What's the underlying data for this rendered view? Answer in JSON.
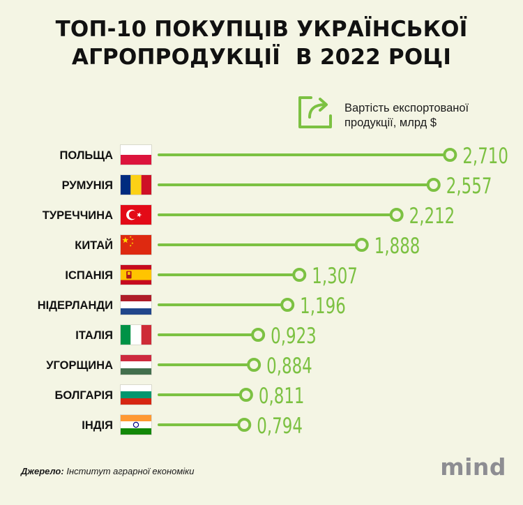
{
  "title": {
    "line1": "ТОП-10 ПОКУПЦІВ УКРАЇНСЬКОЇ",
    "line2": "АГРОПРОДУКЦІЇ  В 2022 РОЦІ"
  },
  "legend": {
    "icon": "export-share-icon",
    "line1": "Вартість експортованої",
    "line2": "продукції, млрд $"
  },
  "colors": {
    "accent": "#7cc142",
    "background": "#f4f5e4",
    "text": "#111111"
  },
  "chart_data": {
    "type": "bar",
    "title": "ТОП-10 ПОКУПЦІВ УКРАЇНСЬКОЇ АГРОПРОДУКЦІЇ  В 2022 РОЦІ",
    "xlabel": "",
    "ylabel": "",
    "unit": "млрд $",
    "xlim": [
      0,
      2.9
    ],
    "grid": false,
    "categories": [
      "ПОЛЬЩА",
      "РУМУНІЯ",
      "ТУРЕЧЧИНА",
      "КИТАЙ",
      "ІСПАНІЯ",
      "НІДЕРЛАНДИ",
      "ІТАЛІЯ",
      "УГОРЩИНА",
      "БОЛГАРІЯ",
      "ІНДІЯ"
    ],
    "flags": [
      "poland-flag",
      "romania-flag",
      "turkey-flag",
      "china-flag",
      "spain-flag",
      "netherlands-flag",
      "italy-flag",
      "hungary-flag",
      "bulgaria-flag",
      "india-flag"
    ],
    "values": [
      2.71,
      2.557,
      2.212,
      1.888,
      1.307,
      1.196,
      0.923,
      0.884,
      0.811,
      0.794
    ],
    "value_labels": [
      "2,710",
      "2,557",
      "2,212",
      "1,888",
      "1,307",
      "1,196",
      "0,923",
      "0,884",
      "0,811",
      "0,794"
    ]
  },
  "source": {
    "label": "Джерело:",
    "text": " Інститут аграрної економіки"
  },
  "logo": "mind"
}
